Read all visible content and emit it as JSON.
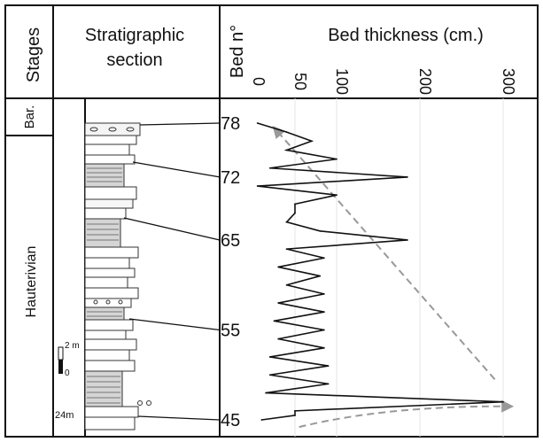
{
  "headers": {
    "stages": "Stages",
    "section_line1": "Stratigraphic",
    "section_line2": "section",
    "bed_no": "Bed n°",
    "thickness": "Bed thickness (cm.)"
  },
  "stages": {
    "upper": "Bar.",
    "lower": "Hauterivian"
  },
  "scale": {
    "top": "2 m",
    "bottom": "0",
    "base_height": "24m"
  },
  "colors": {
    "line": "#111111",
    "trend": "#999999",
    "grid": "#e6e6e6",
    "column_stroke": "#222222"
  },
  "chart_data": {
    "type": "line",
    "title": "",
    "xlabel": "Bed thickness (cm.)",
    "ylabel": "Bed n°",
    "x_axis_position": "top",
    "xlim": [
      0,
      310
    ],
    "x_ticks": [
      0,
      50,
      100,
      200,
      300
    ],
    "y_ticks": [
      45,
      55,
      65,
      72,
      78
    ],
    "series": [
      {
        "y": [
          45,
          45.5,
          46,
          47,
          48,
          49,
          50,
          51,
          52,
          53,
          54,
          55,
          56,
          57,
          58,
          59,
          60,
          61,
          62,
          63,
          64,
          65,
          66,
          67,
          68,
          69,
          70,
          71,
          72,
          73,
          74,
          75,
          76,
          77,
          78
        ],
        "x": [
          10,
          50,
          50,
          300,
          15,
          90,
          20,
          90,
          20,
          85,
          30,
          85,
          25,
          85,
          30,
          85,
          40,
          80,
          30,
          85,
          40,
          185,
          80,
          40,
          50,
          50,
          100,
          5,
          185,
          20,
          100,
          40,
          70,
          40,
          5
        ]
      }
    ],
    "trend_lines": [
      {
        "from": [
          290,
          49.5
        ],
        "to": [
          25,
          77.5
        ],
        "arrow": "end"
      },
      {
        "from": [
          55,
          44.2
        ],
        "to": [
          310,
          46.5
        ],
        "arrow": "end"
      }
    ],
    "grid": true
  }
}
